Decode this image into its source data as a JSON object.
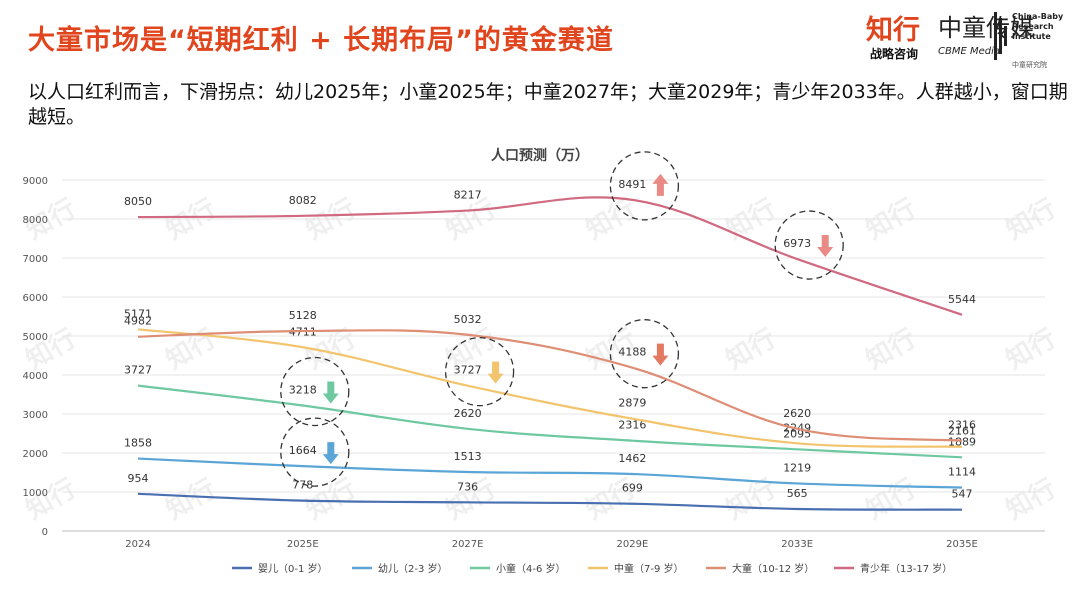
{
  "title": "大童市场是“短期红利 + 长期布局”的黄金赛道",
  "subtitle": "以人口红利而言，下滑拐点：幼儿2025年；小童2025年；中童2027年；大童2029年；青少年2033年。人群越小，窗口期越短。",
  "logo": {
    "brand": "知行",
    "brand_sub": "战略咨询",
    "partner": "中童传媒",
    "partner_sub": "CBME Media",
    "institute": [
      "China-Baby",
      "Research",
      "Institute"
    ],
    "institute_sub": "中童研究院",
    "watermark": "知行"
  },
  "chart_data": {
    "type": "line",
    "title": "人口预测（万）",
    "categories": [
      "2024",
      "2025E",
      "2027E",
      "2029E",
      "2033E",
      "2035E"
    ],
    "ylim": [
      0,
      9000
    ],
    "yticks": [
      0,
      1000,
      2000,
      3000,
      4000,
      5000,
      6000,
      7000,
      8000,
      9000
    ],
    "grid": true,
    "legend_position": "bottom",
    "series": [
      {
        "name": "婴儿（0-1 岁）",
        "color": "#4a6fb0",
        "values": [
          954,
          778,
          736,
          699,
          565,
          547
        ]
      },
      {
        "name": "幼儿（2-3 岁）",
        "color": "#5aa5d6",
        "values": [
          1858,
          1664,
          1513,
          1462,
          1219,
          1114
        ]
      },
      {
        "name": "小童（4-6 岁）",
        "color": "#6ec8a0",
        "values": [
          3727,
          3218,
          2620,
          2316,
          2095,
          1889
        ]
      },
      {
        "name": "中童（7-9 岁）",
        "color": "#f2c46d",
        "values": [
          5171,
          4711,
          3727,
          2879,
          2249,
          2161
        ]
      },
      {
        "name": "大童（10-12 岁）",
        "color": "#de8e75",
        "values": [
          4982,
          5128,
          5032,
          4188,
          2620,
          2316
        ]
      },
      {
        "name": "青少年（13-17 岁）",
        "color": "#d06a80",
        "values": [
          8050,
          8082,
          8217,
          8491,
          6973,
          5544
        ]
      }
    ],
    "highlights": [
      {
        "series": 5,
        "index": 3,
        "direction": "up",
        "arrow_color": "#e98a85"
      },
      {
        "series": 5,
        "index": 4,
        "direction": "down",
        "arrow_color": "#e98a85"
      },
      {
        "series": 4,
        "index": 3,
        "direction": "down",
        "arrow_color": "#e27a62"
      },
      {
        "series": 3,
        "index": 2,
        "direction": "down",
        "arrow_color": "#f2c46d"
      },
      {
        "series": 2,
        "index": 1,
        "direction": "down",
        "arrow_color": "#6ec8a0"
      },
      {
        "series": 1,
        "index": 1,
        "direction": "down",
        "arrow_color": "#5aa5d6"
      }
    ]
  }
}
